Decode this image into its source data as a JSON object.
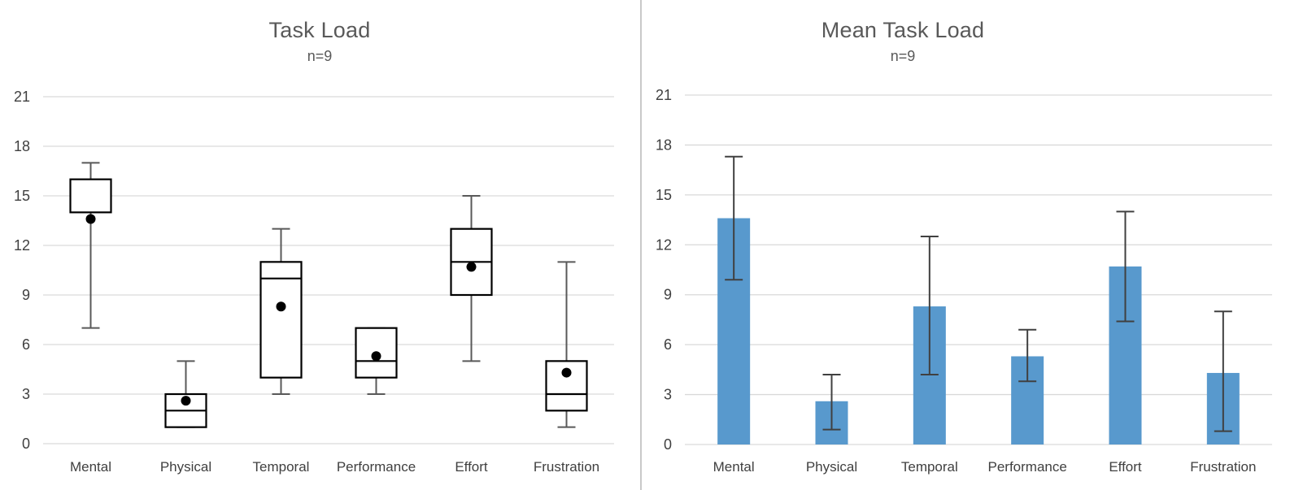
{
  "page": {
    "background": "#ffffff",
    "divider_color": "#c9c9c9"
  },
  "chart_data": [
    {
      "type": "boxplot",
      "title": "Task Load",
      "subtitle": "n=9",
      "categories": [
        "Mental",
        "Physical",
        "Temporal",
        "Performance",
        "Effort",
        "Frustration"
      ],
      "ylim": [
        0,
        21
      ],
      "y_ticks": [
        0,
        3,
        6,
        9,
        12,
        15,
        18,
        21
      ],
      "grid": true,
      "legend": "none",
      "colors": {
        "box_fill": "#ffffff",
        "box_stroke": "#000000",
        "whisker": "#595959",
        "mean_marker": "#000000",
        "gridline": "#d9d9d9",
        "tick_label": "#404040",
        "title": "#595959"
      },
      "series": [
        {
          "name": "Mental",
          "whisker_low": 7,
          "q1": 14,
          "median": null,
          "q3": 16,
          "whisker_high": 17,
          "mean": 13.6
        },
        {
          "name": "Physical",
          "whisker_low": 1,
          "q1": 1,
          "median": 2,
          "q3": 3,
          "whisker_high": 5,
          "mean": 2.6
        },
        {
          "name": "Temporal",
          "whisker_low": 3,
          "q1": 4,
          "median": 10,
          "q3": 11,
          "whisker_high": 13,
          "mean": 8.3
        },
        {
          "name": "Performance",
          "whisker_low": 3,
          "q1": 4,
          "median": 5,
          "q3": 7,
          "whisker_high": 7,
          "mean": 5.3
        },
        {
          "name": "Effort",
          "whisker_low": 5,
          "q1": 9,
          "median": 11,
          "q3": 13,
          "whisker_high": 15,
          "mean": 10.7
        },
        {
          "name": "Frustration",
          "whisker_low": 1,
          "q1": 2,
          "median": 3,
          "q3": 5,
          "whisker_high": 11,
          "mean": 4.3
        }
      ]
    },
    {
      "type": "bar",
      "title": "Mean Task Load",
      "subtitle": "n=9",
      "categories": [
        "Mental",
        "Physical",
        "Temporal",
        "Performance",
        "Effort",
        "Frustration"
      ],
      "ylim": [
        0,
        21
      ],
      "y_ticks": [
        0,
        3,
        6,
        9,
        12,
        15,
        18,
        21
      ],
      "grid": true,
      "legend": "none",
      "colors": {
        "bar": "#5899cd",
        "error_bar": "#404040",
        "gridline": "#d9d9d9",
        "tick_label": "#404040",
        "title": "#595959"
      },
      "series": [
        {
          "name": "Mental",
          "value": 13.6,
          "error_low": 9.9,
          "error_high": 17.3
        },
        {
          "name": "Physical",
          "value": 2.6,
          "error_low": 0.9,
          "error_high": 4.2
        },
        {
          "name": "Temporal",
          "value": 8.3,
          "error_low": 4.2,
          "error_high": 12.5
        },
        {
          "name": "Performance",
          "value": 5.3,
          "error_low": 3.8,
          "error_high": 6.9
        },
        {
          "name": "Effort",
          "value": 10.7,
          "error_low": 7.4,
          "error_high": 14.0
        },
        {
          "name": "Frustration",
          "value": 4.3,
          "error_low": 0.8,
          "error_high": 8.0
        }
      ]
    }
  ]
}
